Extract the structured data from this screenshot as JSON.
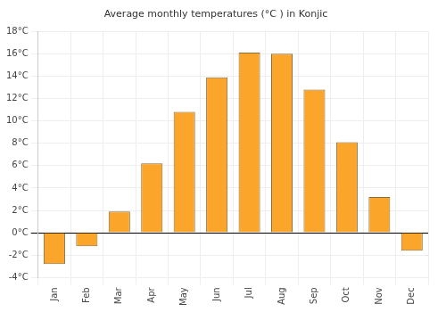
{
  "chart_data": {
    "type": "bar",
    "title": "Average monthly temperatures (°C ) in Konjic",
    "categories": [
      "Jan",
      "Feb",
      "Mar",
      "Apr",
      "May",
      "Jun",
      "Jul",
      "Aug",
      "Sep",
      "Oct",
      "Nov",
      "Dec"
    ],
    "values": [
      -2.8,
      -1.2,
      1.9,
      6.2,
      10.8,
      13.9,
      16.1,
      16.0,
      12.8,
      8.1,
      3.2,
      -1.6
    ],
    "color": "#fba52a",
    "ylim": [
      -4,
      18
    ],
    "yticks": [
      {
        "value": -4,
        "label": "-4°C"
      },
      {
        "value": -2,
        "label": "-2°C"
      },
      {
        "value": 0,
        "label": "0°C"
      },
      {
        "value": 2,
        "label": "2°C"
      },
      {
        "value": 4,
        "label": "4°C"
      },
      {
        "value": 6,
        "label": "6°C"
      },
      {
        "value": 8,
        "label": "8°C"
      },
      {
        "value": 10,
        "label": "10°C"
      },
      {
        "value": 12,
        "label": "12°C"
      },
      {
        "value": 14,
        "label": "14°C"
      },
      {
        "value": 16,
        "label": "16°C"
      },
      {
        "value": 18,
        "label": "18°C"
      }
    ],
    "grid": true
  }
}
